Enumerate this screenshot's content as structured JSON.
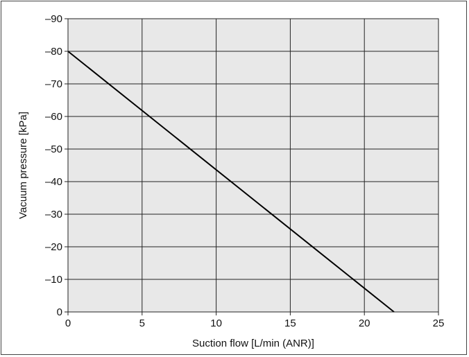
{
  "chart_data": {
    "type": "line",
    "title": "",
    "xlabel": "Suction flow [L/min (ANR)]",
    "ylabel": "Vacuum pressure [kPa]",
    "xlim": [
      0,
      25
    ],
    "ylim": [
      0,
      -90
    ],
    "x_ticks": [
      0,
      5,
      10,
      15,
      20,
      25
    ],
    "y_ticks": [
      0,
      -10,
      -20,
      -30,
      -40,
      -50,
      -60,
      -70,
      -80,
      -90
    ],
    "x_tick_labels": [
      "0",
      "5",
      "10",
      "15",
      "20",
      "25"
    ],
    "y_tick_labels": [
      "0",
      "–10",
      "–20",
      "–30",
      "–40",
      "–50",
      "–60",
      "–70",
      "–80",
      "–90"
    ],
    "grid": true,
    "plot_background": "#e8e8e8",
    "series": [
      {
        "x": [
          0,
          22
        ],
        "y": [
          -80,
          0
        ],
        "color": "#000000"
      }
    ]
  }
}
